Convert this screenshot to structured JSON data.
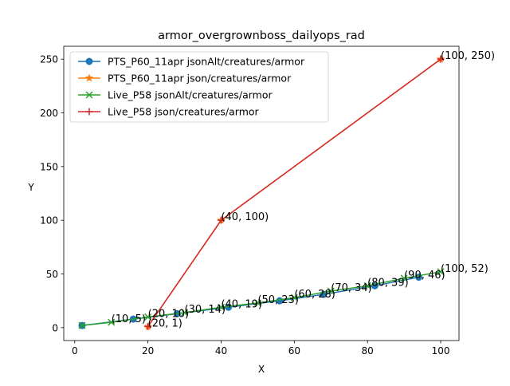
{
  "chart_data": {
    "type": "line",
    "title": "armor_overgrownboss_dailyops_rad",
    "xlabel": "X",
    "ylabel": "Y",
    "xlim": [
      -3,
      105
    ],
    "ylim": [
      -12,
      262
    ],
    "xticks": [
      0,
      20,
      40,
      60,
      80,
      100
    ],
    "yticks": [
      0,
      50,
      100,
      150,
      200,
      250
    ],
    "grid": false,
    "legend_position": "top-left",
    "series": [
      {
        "name": "PTS_P60_11apr jsonAlt/creatures/armor",
        "color": "#1f77b4",
        "marker": "circle",
        "points": [
          [
            2,
            2
          ],
          [
            16,
            8
          ],
          [
            28,
            13
          ],
          [
            42,
            19
          ],
          [
            56,
            25
          ],
          [
            68,
            31
          ],
          [
            82,
            39
          ],
          [
            94,
            47
          ]
        ]
      },
      {
        "name": "PTS_P60_11apr json/creatures/armor",
        "color": "#ff7f0e",
        "marker": "star",
        "points": [
          [
            20,
            1
          ],
          [
            40,
            100
          ],
          [
            100,
            250
          ]
        ]
      },
      {
        "name": "Live_P58 jsonAlt/creatures/armor",
        "color": "#2ca02c",
        "marker": "x",
        "points": [
          [
            2,
            2
          ],
          [
            10,
            5
          ],
          [
            20,
            10
          ],
          [
            30,
            14
          ],
          [
            40,
            19
          ],
          [
            50,
            23
          ],
          [
            60,
            28
          ],
          [
            70,
            34
          ],
          [
            80,
            39
          ],
          [
            90,
            46
          ],
          [
            100,
            52
          ]
        ]
      },
      {
        "name": "Live_P58 json/creatures/armor",
        "color": "#d62728",
        "marker": "plus",
        "points": [
          [
            20,
            1
          ],
          [
            40,
            100
          ],
          [
            100,
            250
          ]
        ]
      }
    ],
    "annotations": [
      {
        "text": "(10, 5)",
        "x": 10,
        "y": 5
      },
      {
        "text": "(20, 10)",
        "x": 20,
        "y": 10
      },
      {
        "text": "(20, 1)",
        "x": 20,
        "y": 1
      },
      {
        "text": "(30, 14)",
        "x": 30,
        "y": 14
      },
      {
        "text": "(40, 19)",
        "x": 40,
        "y": 19
      },
      {
        "text": "(40, 100)",
        "x": 40,
        "y": 100
      },
      {
        "text": "(50, 23)",
        "x": 50,
        "y": 23
      },
      {
        "text": "(60, 28)",
        "x": 60,
        "y": 28
      },
      {
        "text": "(70, 34)",
        "x": 70,
        "y": 34
      },
      {
        "text": "(80, 39)",
        "x": 80,
        "y": 39
      },
      {
        "text": "(90, 46)",
        "x": 90,
        "y": 46
      },
      {
        "text": "(100, 52)",
        "x": 100,
        "y": 52
      },
      {
        "text": "(100, 250)",
        "x": 100,
        "y": 250
      }
    ]
  }
}
